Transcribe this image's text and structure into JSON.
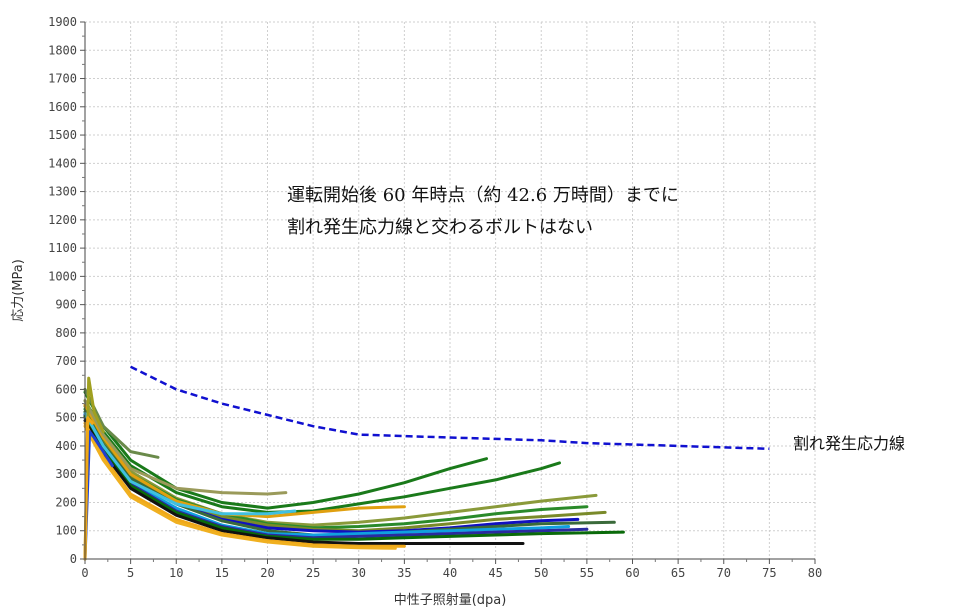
{
  "chart_data": {
    "type": "line",
    "xlabel": "中性子照射量(dpa)",
    "ylabel": "応力(MPa)",
    "xlim": [
      0,
      80
    ],
    "ylim": [
      0,
      1900
    ],
    "xticks": [
      0,
      5,
      10,
      15,
      20,
      25,
      30,
      35,
      40,
      45,
      50,
      55,
      60,
      65,
      70,
      75,
      80
    ],
    "yticks": [
      0,
      100,
      200,
      300,
      400,
      500,
      600,
      700,
      800,
      900,
      1000,
      1100,
      1200,
      1300,
      1400,
      1500,
      1600,
      1700,
      1800,
      1900
    ],
    "grid": true,
    "annotation": [
      "運転開始後 60 年時点（約 42.6 万時間）までに",
      "割れ発生応力線と交わるボルトはない"
    ],
    "threshold": {
      "name": "割れ発生応力線",
      "color": "#1010d0",
      "points": [
        [
          5,
          680
        ],
        [
          10,
          600
        ],
        [
          15,
          550
        ],
        [
          20,
          510
        ],
        [
          25,
          470
        ],
        [
          30,
          440
        ],
        [
          35,
          435
        ],
        [
          40,
          430
        ],
        [
          45,
          425
        ],
        [
          50,
          420
        ],
        [
          55,
          410
        ],
        [
          60,
          405
        ],
        [
          65,
          400
        ],
        [
          70,
          395
        ],
        [
          75,
          390
        ]
      ]
    },
    "series": [
      {
        "color": "#1a7a1a",
        "x": [
          0,
          2,
          5,
          10,
          15,
          20,
          25,
          30,
          35,
          40,
          44
        ],
        "y": [
          590,
          470,
          350,
          250,
          200,
          180,
          200,
          230,
          270,
          320,
          355
        ]
      },
      {
        "color": "#1a7a1a",
        "x": [
          0,
          2,
          5,
          10,
          15,
          20,
          25,
          30,
          35,
          40,
          45,
          50,
          52
        ],
        "y": [
          560,
          450,
          330,
          235,
          185,
          165,
          170,
          195,
          220,
          250,
          280,
          320,
          340
        ]
      },
      {
        "color": "#8a9a3a",
        "x": [
          0,
          2,
          5,
          10,
          15,
          20,
          25,
          30,
          35,
          40,
          45,
          50,
          56
        ],
        "y": [
          540,
          430,
          310,
          215,
          160,
          130,
          120,
          130,
          145,
          165,
          185,
          205,
          225
        ]
      },
      {
        "color": "#2a8a2a",
        "x": [
          0,
          2,
          5,
          10,
          15,
          20,
          25,
          30,
          35,
          40,
          45,
          50,
          55
        ],
        "y": [
          530,
          420,
          300,
          210,
          160,
          125,
          110,
          115,
          125,
          140,
          160,
          175,
          185
        ]
      },
      {
        "color": "#7a8a2a",
        "x": [
          0,
          2,
          5,
          10,
          15,
          20,
          25,
          30,
          35,
          40,
          45,
          50,
          57
        ],
        "y": [
          520,
          410,
          290,
          200,
          150,
          120,
          105,
          100,
          110,
          125,
          140,
          150,
          165
        ]
      },
      {
        "color": "#1010c0",
        "x": [
          0,
          2,
          5,
          10,
          15,
          20,
          25,
          30,
          35,
          40,
          45,
          50,
          54
        ],
        "y": [
          510,
          400,
          280,
          195,
          140,
          110,
          100,
          95,
          100,
          110,
          125,
          135,
          140
        ]
      },
      {
        "color": "#3a6a3a",
        "x": [
          0,
          2,
          5,
          10,
          15,
          20,
          25,
          30,
          35,
          40,
          45,
          50,
          58
        ],
        "y": [
          520,
          405,
          285,
          195,
          135,
          100,
          85,
          85,
          95,
          105,
          115,
          125,
          130
        ]
      },
      {
        "color": "#10a0e0",
        "x": [
          0,
          2,
          5,
          10,
          15,
          20,
          25,
          30,
          35,
          40,
          45,
          50,
          53
        ],
        "y": [
          500,
          390,
          270,
          180,
          120,
          90,
          85,
          90,
          95,
          100,
          105,
          110,
          115
        ]
      },
      {
        "color": "#2a2aa0",
        "x": [
          0,
          2,
          5,
          10,
          15,
          20,
          25,
          30,
          35,
          40,
          45,
          50,
          55
        ],
        "y": [
          500,
          385,
          265,
          170,
          115,
          85,
          75,
          80,
          85,
          90,
          95,
          100,
          105
        ]
      },
      {
        "color": "#0a6a0a",
        "x": [
          0,
          2,
          5,
          10,
          15,
          20,
          25,
          30,
          35,
          40,
          45,
          50,
          59
        ],
        "y": [
          505,
          390,
          260,
          165,
          110,
          80,
          70,
          70,
          75,
          80,
          85,
          90,
          95
        ]
      },
      {
        "color": "#111111",
        "x": [
          0,
          2,
          5,
          10,
          15,
          20,
          25,
          30,
          35,
          40,
          45,
          48
        ],
        "y": [
          490,
          375,
          250,
          155,
          100,
          75,
          60,
          55,
          55,
          55,
          55,
          55
        ]
      },
      {
        "color": "#f0a818",
        "x": [
          0,
          2,
          5,
          10,
          15,
          20,
          25,
          30,
          35
        ],
        "y": [
          480,
          360,
          230,
          140,
          90,
          65,
          50,
          45,
          45
        ]
      },
      {
        "color": "#f0b020",
        "x": [
          0,
          2,
          5,
          10,
          15,
          20,
          25,
          30,
          34
        ],
        "y": [
          470,
          350,
          220,
          130,
          85,
          60,
          45,
          40,
          38
        ]
      },
      {
        "color": "#e0a010",
        "x": [
          0,
          2,
          5,
          10,
          15,
          20,
          25,
          30,
          35
        ],
        "y": [
          545,
          430,
          300,
          205,
          160,
          150,
          165,
          180,
          185
        ]
      },
      {
        "color": "#9a9a5a",
        "x": [
          0,
          2,
          5,
          10,
          15,
          20,
          22
        ],
        "y": [
          560,
          440,
          320,
          250,
          235,
          230,
          235
        ]
      },
      {
        "color": "#6a8a4a",
        "x": [
          0,
          2,
          5,
          8
        ],
        "y": [
          600,
          470,
          380,
          360
        ]
      },
      {
        "color": "#40c0e0",
        "x": [
          0,
          2,
          5,
          10,
          15,
          20,
          23
        ],
        "y": [
          515,
          400,
          275,
          195,
          160,
          160,
          170
        ]
      },
      {
        "color": "#2040d0",
        "x": [
          0,
          0.5,
          1,
          2,
          3
        ],
        "y": [
          0,
          450,
          430,
          380,
          330
        ]
      },
      {
        "color": "#a0a020",
        "x": [
          0,
          0.4,
          1,
          2
        ],
        "y": [
          0,
          640,
          520,
          450
        ]
      },
      {
        "color": "#f0a818",
        "x": [
          0,
          0.3,
          0.8
        ],
        "y": [
          0,
          500,
          480
        ]
      }
    ]
  }
}
